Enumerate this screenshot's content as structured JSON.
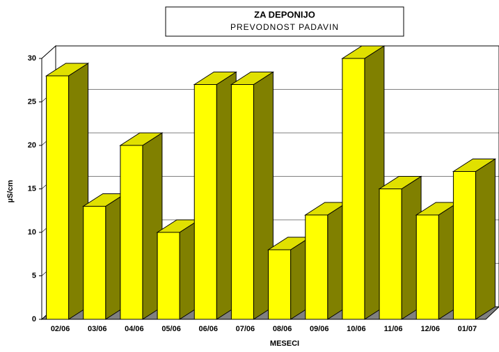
{
  "chart_data": {
    "type": "bar3d",
    "title": "ZA DEPONIJO",
    "subtitle": "PREVODNOST PADAVIN",
    "x_label": "MESECI",
    "y_label": "µS/cm",
    "categories": [
      "02/06",
      "03/06",
      "04/06",
      "05/06",
      "06/06",
      "07/06",
      "08/06",
      "09/06",
      "10/06",
      "11/06",
      "12/06",
      "01/07"
    ],
    "values": [
      28,
      13,
      20,
      10,
      27,
      27,
      8,
      12,
      30,
      15,
      12,
      17
    ],
    "color": "#ffff00",
    "side_color": "#808000",
    "top_color": "#e0e000",
    "ylim": [
      0,
      30
    ],
    "yticks": [
      0,
      5,
      10,
      15,
      20,
      25,
      30
    ],
    "grid": true
  }
}
